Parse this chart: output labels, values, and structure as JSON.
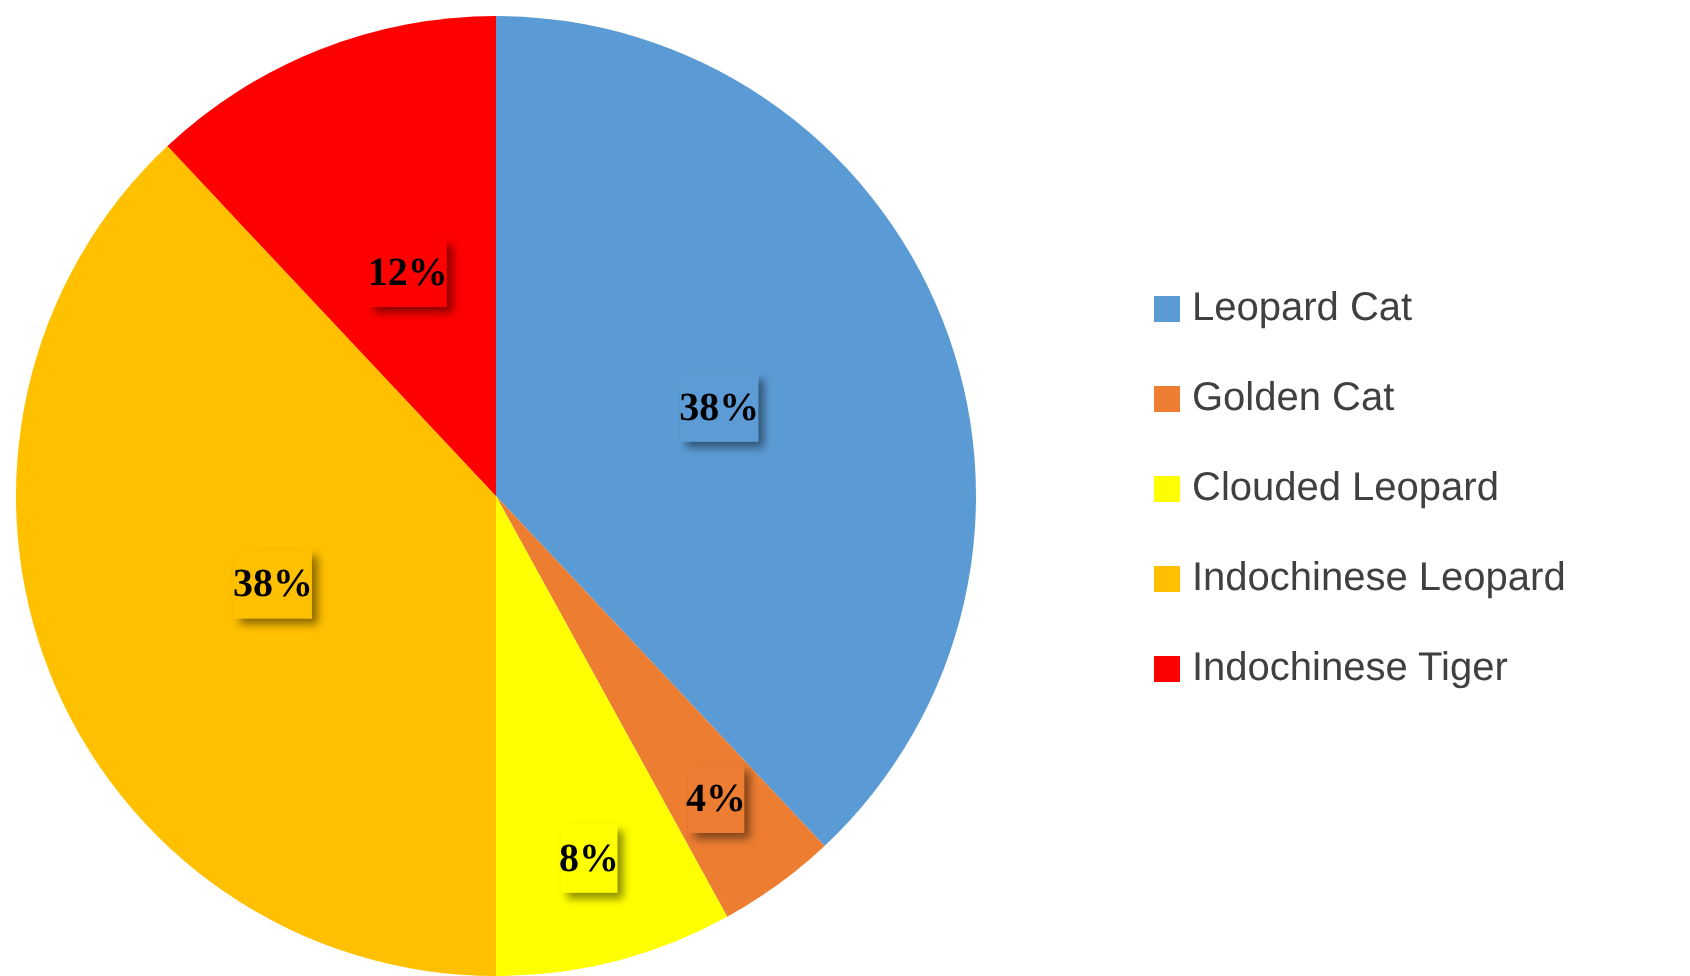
{
  "chart_data": {
    "type": "pie",
    "categories": [
      "Leopard Cat",
      "Golden Cat",
      "Clouded Leopard",
      "Indochinese Leopard",
      "Indochinese Tiger"
    ],
    "values": [
      38,
      4,
      8,
      38,
      12
    ],
    "colors": [
      "#5b9bd5",
      "#ed7d31",
      "#ffff00",
      "#ffc000",
      "#ff0000"
    ],
    "value_labels": [
      "38%",
      "4%",
      "8%",
      "38%",
      "12%"
    ],
    "legend": "right"
  }
}
